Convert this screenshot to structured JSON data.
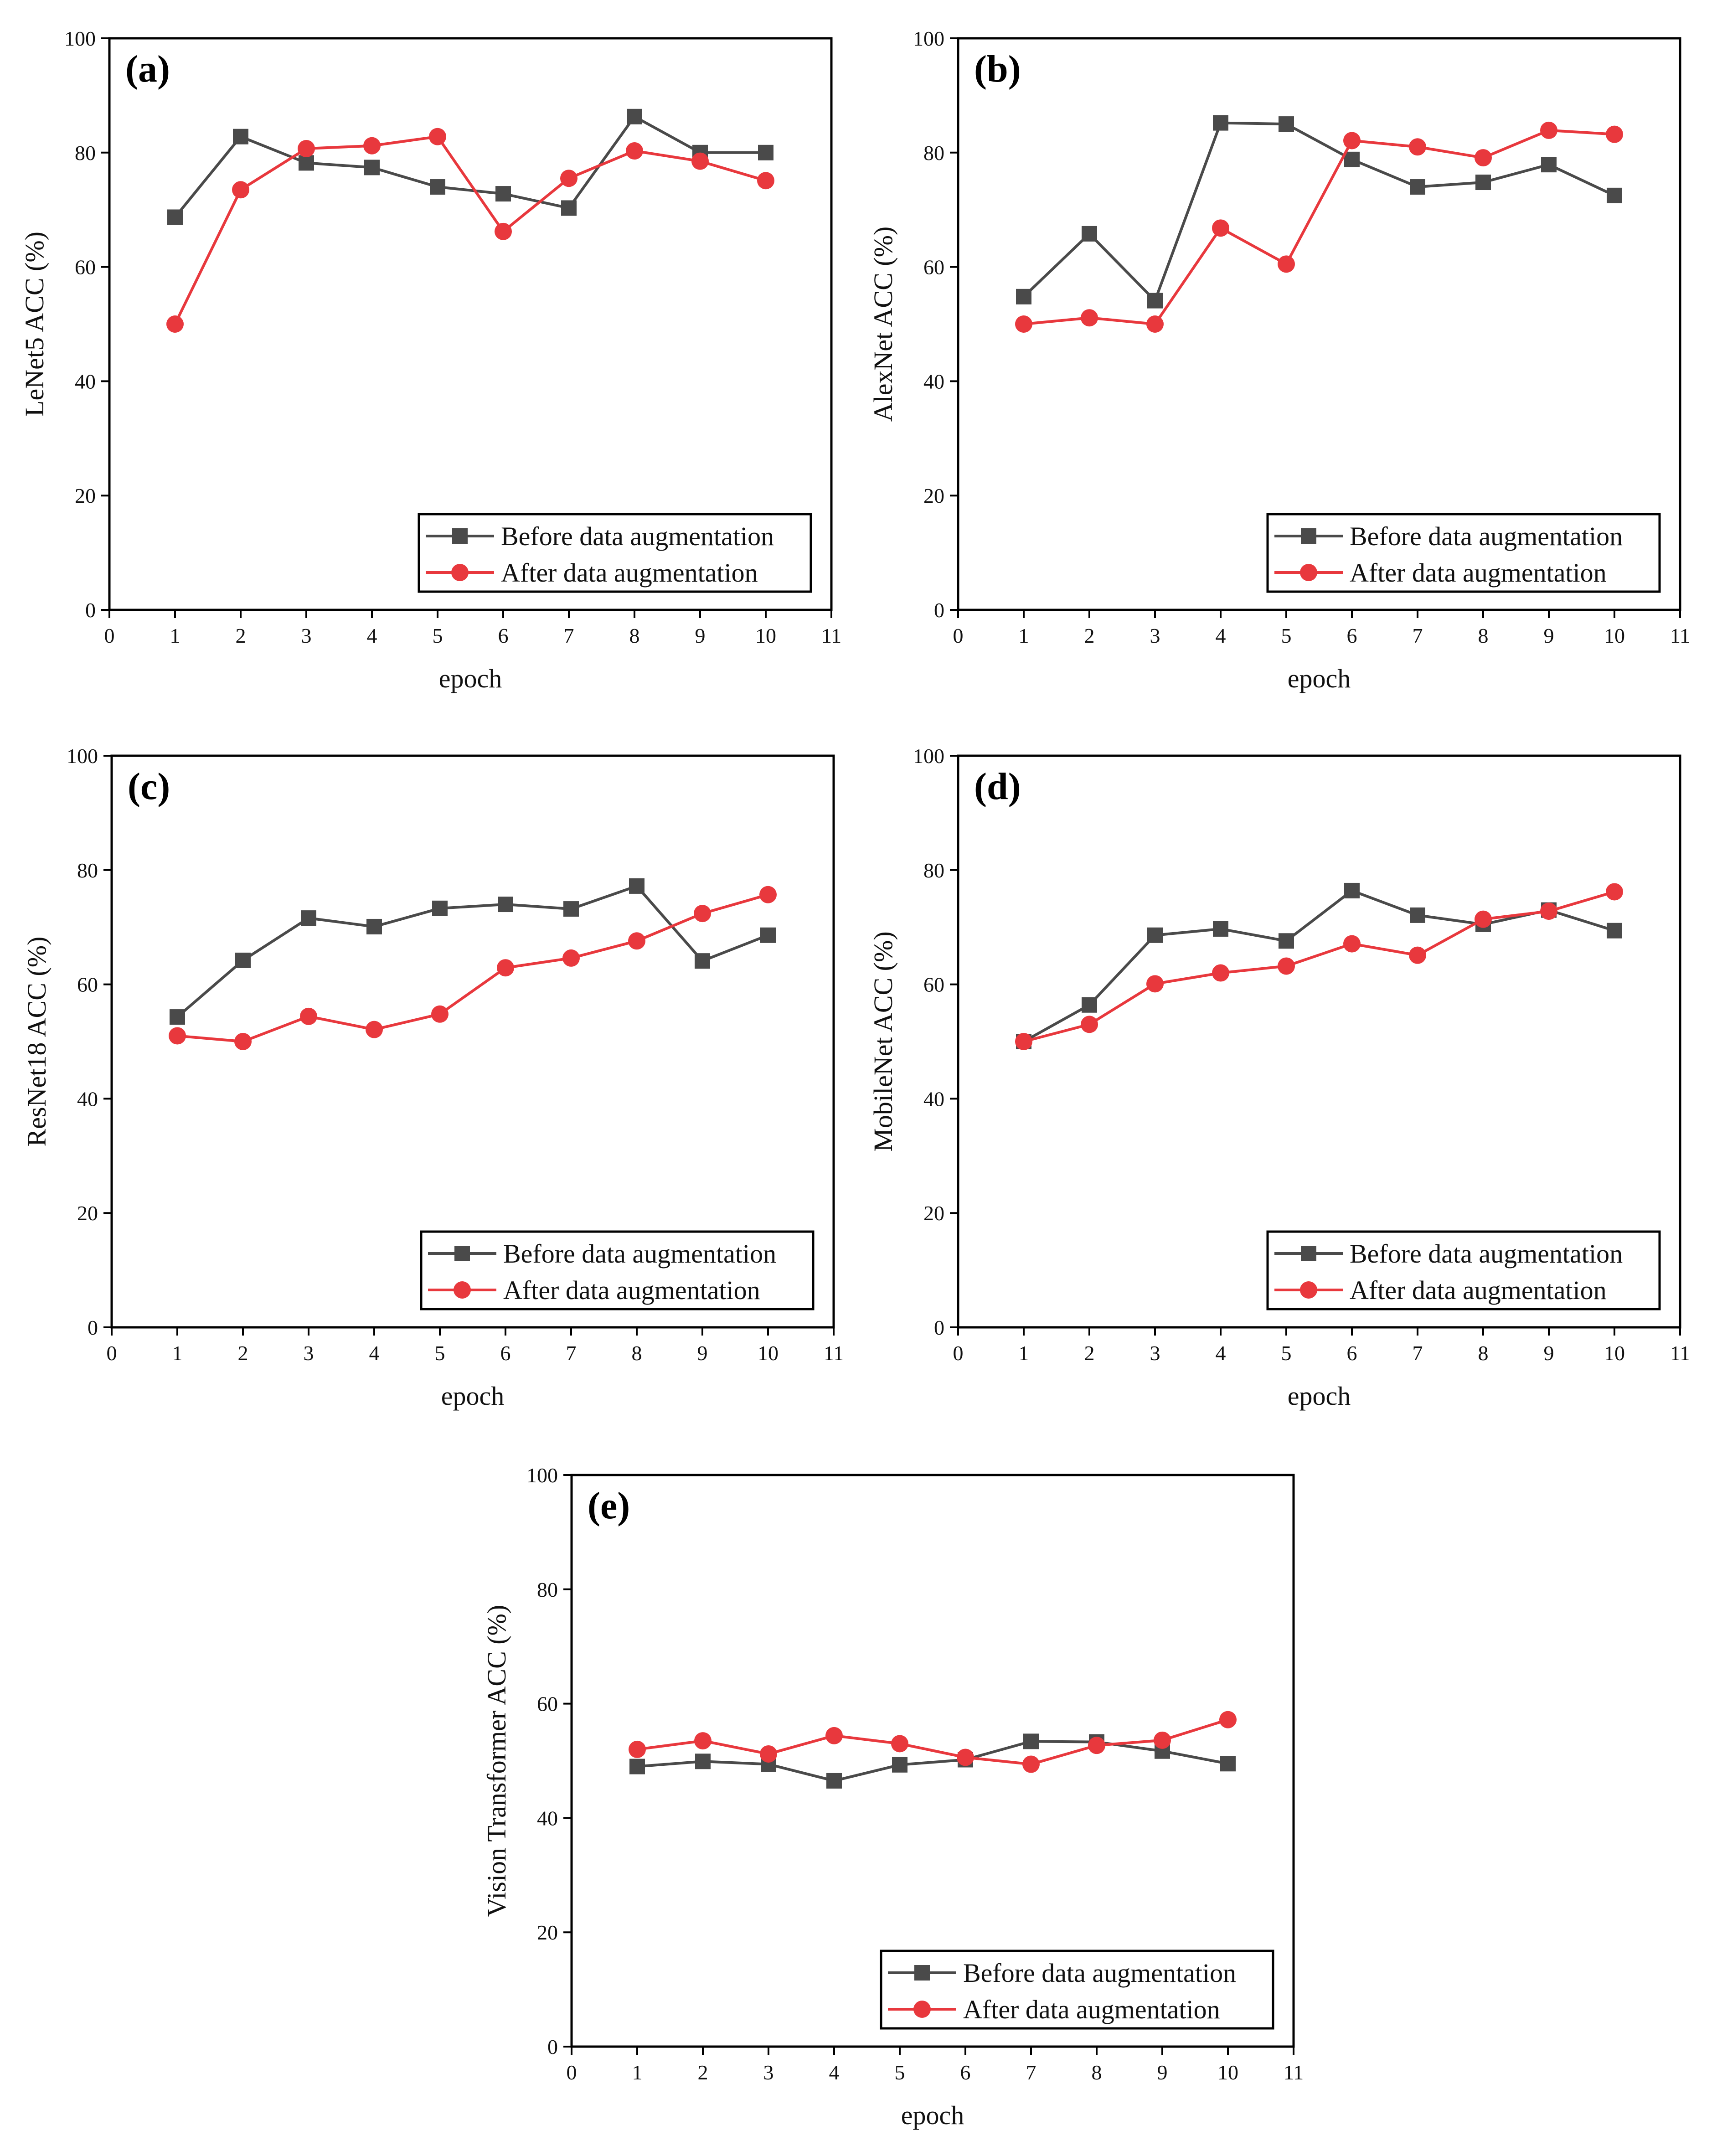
{
  "figure": {
    "colors": {
      "before": "#4a4a4a",
      "after": "#e8383d",
      "axis": "#000000"
    },
    "legend": {
      "before": "Before data augmentation",
      "after": "After data augmentation"
    }
  },
  "chart_data": [
    {
      "type": "line",
      "panel_label": "(a)",
      "xlabel": "epoch",
      "ylabel": "LeNet5 ACC (%)",
      "xlim": [
        0,
        11
      ],
      "ylim": [
        0,
        100
      ],
      "x_ticks": [
        0,
        1,
        2,
        3,
        4,
        5,
        6,
        7,
        8,
        9,
        10,
        11
      ],
      "y_ticks": [
        0,
        20,
        40,
        60,
        80,
        100
      ],
      "legend_position": "bottom-right",
      "x": [
        1,
        2,
        3,
        4,
        5,
        6,
        7,
        8,
        9,
        10
      ],
      "series": [
        {
          "name": "Before data augmentation",
          "marker": "square",
          "values": [
            68.7,
            82.8,
            78.2,
            77.4,
            74.0,
            72.8,
            70.3,
            86.3,
            80.0,
            80.0
          ]
        },
        {
          "name": "After data augmentation",
          "marker": "circle",
          "values": [
            50.0,
            73.5,
            80.7,
            81.2,
            82.8,
            66.2,
            75.5,
            80.3,
            78.5,
            75.1
          ]
        }
      ]
    },
    {
      "type": "line",
      "panel_label": "(b)",
      "xlabel": "epoch",
      "ylabel": "AlexNet ACC (%)",
      "xlim": [
        0,
        11
      ],
      "ylim": [
        0,
        100
      ],
      "x_ticks": [
        0,
        1,
        2,
        3,
        4,
        5,
        6,
        7,
        8,
        9,
        10,
        11
      ],
      "y_ticks": [
        0,
        20,
        40,
        60,
        80,
        100
      ],
      "legend_position": "bottom-right",
      "x": [
        1,
        2,
        3,
        4,
        5,
        6,
        7,
        8,
        9,
        10
      ],
      "series": [
        {
          "name": "Before data augmentation",
          "marker": "square",
          "values": [
            54.8,
            65.8,
            54.1,
            85.2,
            85.0,
            78.8,
            74.0,
            74.8,
            77.9,
            72.5
          ]
        },
        {
          "name": "After data augmentation",
          "marker": "circle",
          "values": [
            50.0,
            51.1,
            50.0,
            66.8,
            60.5,
            82.1,
            81.0,
            79.1,
            83.9,
            83.2
          ]
        }
      ]
    },
    {
      "type": "line",
      "panel_label": "(c)",
      "xlabel": "epoch",
      "ylabel": "ResNet18 ACC (%)",
      "xlim": [
        0,
        11
      ],
      "ylim": [
        0,
        100
      ],
      "x_ticks": [
        0,
        1,
        2,
        3,
        4,
        5,
        6,
        7,
        8,
        9,
        10,
        11
      ],
      "y_ticks": [
        0,
        20,
        40,
        60,
        80,
        100
      ],
      "legend_position": "bottom-right",
      "x": [
        1,
        2,
        3,
        4,
        5,
        6,
        7,
        8,
        9,
        10
      ],
      "series": [
        {
          "name": "Before data augmentation",
          "marker": "square",
          "values": [
            54.3,
            64.2,
            71.6,
            70.1,
            73.3,
            74.0,
            73.2,
            77.2,
            64.1,
            68.6
          ]
        },
        {
          "name": "After data augmentation",
          "marker": "circle",
          "values": [
            51.0,
            50.0,
            54.4,
            52.1,
            54.8,
            62.9,
            64.6,
            67.6,
            72.4,
            75.7
          ]
        }
      ]
    },
    {
      "type": "line",
      "panel_label": "(d)",
      "xlabel": "epoch",
      "ylabel": "MobileNet ACC (%)",
      "xlim": [
        0,
        11
      ],
      "ylim": [
        0,
        100
      ],
      "x_ticks": [
        0,
        1,
        2,
        3,
        4,
        5,
        6,
        7,
        8,
        9,
        10,
        11
      ],
      "y_ticks": [
        0,
        20,
        40,
        60,
        80,
        100
      ],
      "legend_position": "bottom-right",
      "x": [
        1,
        2,
        3,
        4,
        5,
        6,
        7,
        8,
        9,
        10
      ],
      "series": [
        {
          "name": "Before data augmentation",
          "marker": "square",
          "values": [
            50.0,
            56.4,
            68.6,
            69.7,
            67.6,
            76.4,
            72.1,
            70.5,
            73.0,
            69.4
          ]
        },
        {
          "name": "After data augmentation",
          "marker": "circle",
          "values": [
            50.0,
            53.0,
            60.1,
            62.0,
            63.2,
            67.1,
            65.1,
            71.4,
            72.8,
            76.2
          ]
        }
      ]
    },
    {
      "type": "line",
      "panel_label": "(e)",
      "xlabel": "epoch",
      "ylabel": "Vision Transformer ACC (%)",
      "xlim": [
        0,
        11
      ],
      "ylim": [
        0,
        100
      ],
      "x_ticks": [
        0,
        1,
        2,
        3,
        4,
        5,
        6,
        7,
        8,
        9,
        10,
        11
      ],
      "y_ticks": [
        0,
        20,
        40,
        60,
        80,
        100
      ],
      "legend_position": "bottom-right",
      "x": [
        1,
        2,
        3,
        4,
        5,
        6,
        7,
        8,
        9,
        10
      ],
      "series": [
        {
          "name": "Before data augmentation",
          "marker": "square",
          "values": [
            49.0,
            49.9,
            49.4,
            46.5,
            49.3,
            50.2,
            53.4,
            53.3,
            51.7,
            49.5
          ]
        },
        {
          "name": "After data augmentation",
          "marker": "circle",
          "values": [
            52.0,
            53.5,
            51.2,
            54.4,
            53.0,
            50.6,
            49.4,
            52.7,
            53.6,
            57.2
          ]
        }
      ]
    }
  ]
}
